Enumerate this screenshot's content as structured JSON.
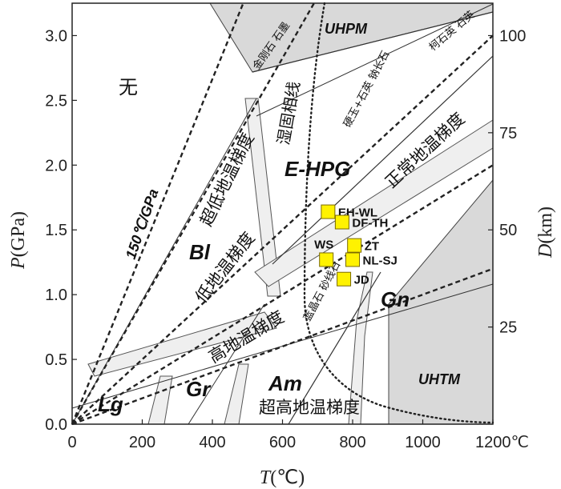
{
  "chart_data": {
    "type": "scatter",
    "x_axis": {
      "label_italic": "T",
      "label_rest": "(℃)",
      "range": [
        0,
        1200
      ],
      "ticks": [
        {
          "value": 0,
          "label": "0"
        },
        {
          "value": 200,
          "label": "200"
        },
        {
          "value": 400,
          "label": "400"
        },
        {
          "value": 600,
          "label": "600"
        },
        {
          "value": 800,
          "label": "800"
        },
        {
          "value": 1000,
          "label": "1000"
        },
        {
          "value": 1200,
          "label": "1200℃"
        }
      ]
    },
    "y_axis": {
      "label_italic": "P",
      "label_rest": "(GPa)",
      "range": [
        0,
        3.25
      ],
      "ticks": [
        {
          "value": 0,
          "label": "0.0"
        },
        {
          "value": 0.5,
          "label": "0.5"
        },
        {
          "value": 1.0,
          "label": "1.0"
        },
        {
          "value": 1.5,
          "label": "1.5"
        },
        {
          "value": 2.0,
          "label": "2.0"
        },
        {
          "value": 2.5,
          "label": "2.5"
        },
        {
          "value": 3.0,
          "label": "3.0"
        }
      ]
    },
    "y2_axis": {
      "label_italic": "D",
      "label_rest": "(km)",
      "ticks": [
        {
          "value": 25,
          "label": "25",
          "p": 0.75
        },
        {
          "value": 50,
          "label": "50",
          "p": 1.5
        },
        {
          "value": 75,
          "label": "75",
          "p": 2.25
        },
        {
          "value": 100,
          "label": "100",
          "p": 3.0
        }
      ]
    },
    "points": [
      {
        "name": "EH-WL",
        "t": 730,
        "p": 1.64,
        "label_dir": "right"
      },
      {
        "name": "DF-TH",
        "t": 770,
        "p": 1.56,
        "label_dir": "right"
      },
      {
        "name": "WS",
        "t": 725,
        "p": 1.27,
        "label_dir": "up-left"
      },
      {
        "name": "ZT",
        "t": 805,
        "p": 1.38,
        "label_dir": "right"
      },
      {
        "name": "NL-SJ",
        "t": 800,
        "p": 1.27,
        "label_dir": "right"
      },
      {
        "name": "JD",
        "t": 775,
        "p": 1.12,
        "label_dir": "right"
      }
    ],
    "gradients": [
      {
        "label": "150℃/GPa",
        "style": "dashed",
        "from": [
          0,
          0
        ],
        "to": [
          488,
          3.25
        ]
      },
      {
        "label": "超低地温梯度",
        "style": "dashed",
        "from": [
          0,
          0
        ],
        "to": [
          690,
          3.25
        ]
      },
      {
        "label": "低地温梯度",
        "style": "dashed",
        "from": [
          0,
          0
        ],
        "to": [
          1200,
          3.0
        ]
      },
      {
        "label": "正常地温梯度",
        "style": "dashed",
        "from": [
          0,
          0
        ],
        "to": [
          1200,
          2.0
        ]
      },
      {
        "label": "高地温梯度",
        "style": "dashed",
        "from": [
          0,
          0
        ],
        "to": [
          1200,
          1.2
        ]
      },
      {
        "label": "超高地温梯度",
        "style": "none"
      }
    ],
    "phase_lines": [
      {
        "label": "湿固相线",
        "style": "dotted"
      },
      {
        "label": "金刚石 石墨",
        "style": "solid"
      },
      {
        "label": "柯石英 石英",
        "style": "solid"
      },
      {
        "label": "硬玉+石英 钠长石",
        "style": "solid"
      },
      {
        "label": "蓝晶石 砂线石",
        "style": "solid"
      }
    ],
    "regions": [
      {
        "label": "无"
      },
      {
        "label": "UHPM"
      },
      {
        "label": "E-HPG"
      },
      {
        "label": "Bl"
      },
      {
        "label": "Gn"
      },
      {
        "label": "UHTM"
      },
      {
        "label": "Lg"
      },
      {
        "label": "Gr"
      },
      {
        "label": "Am"
      }
    ],
    "colors": {
      "shade": "#d9d9d9",
      "band": "#efefef",
      "marker": "#fff200",
      "marker_edge": "#7a6a00"
    }
  }
}
